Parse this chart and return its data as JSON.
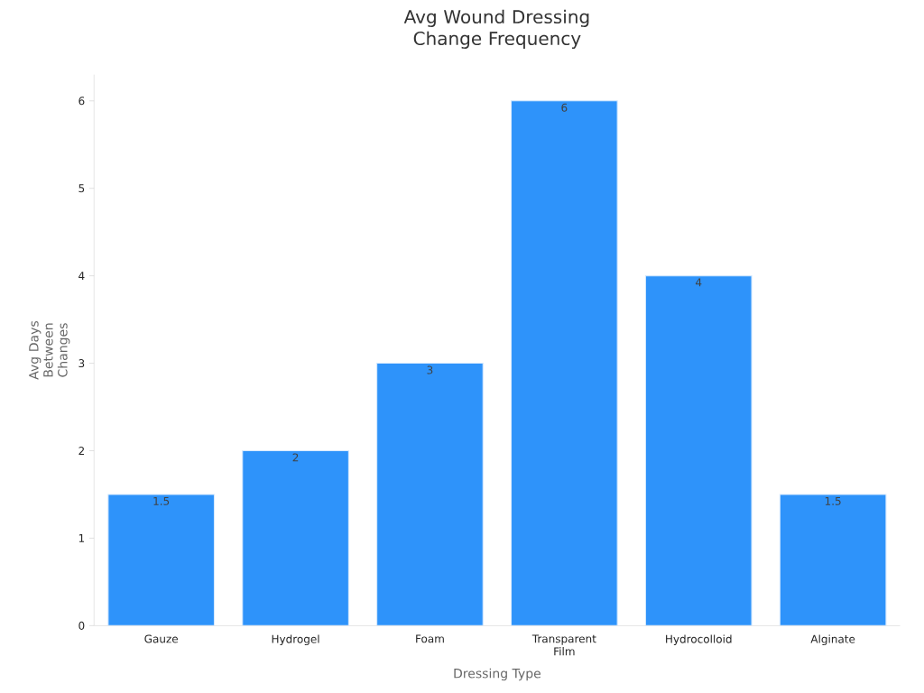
{
  "chart_data": {
    "type": "bar",
    "title": "Avg Wound Dressing Change Frequency",
    "xlabel": "Dressing Type",
    "ylabel": "Avg Days Between Changes",
    "categories": [
      "Gauze",
      "Hydrogel",
      "Foam",
      "Transparent Film",
      "Hydrocolloid",
      "Alginate"
    ],
    "values": [
      1.5,
      2,
      3,
      6,
      4,
      1.5
    ],
    "color": "#2e93fa",
    "ylim": [
      0,
      6.3
    ],
    "yticks": [
      0,
      1,
      2,
      3,
      4,
      5,
      6
    ],
    "grid": false,
    "data_labels": true
  }
}
